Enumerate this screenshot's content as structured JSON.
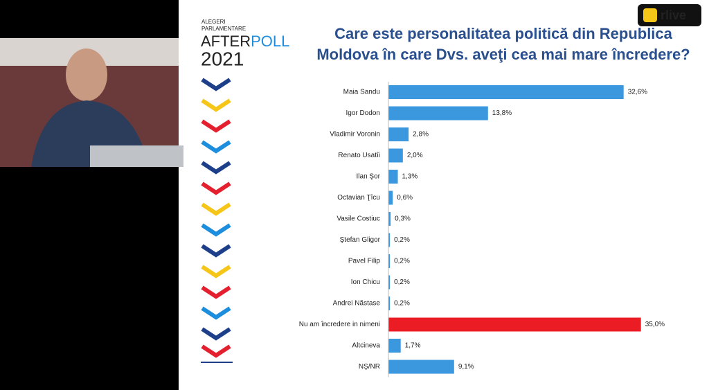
{
  "logo": {
    "line1": "ALEGERI",
    "line2": "PARLAMENTARE",
    "after": "AFTER",
    "poll": "POLL",
    "year": "2021"
  },
  "watermark": "rlive",
  "chart_data": {
    "type": "hbar",
    "title": "Care este personalitatea politică din Republica Moldova în care Dvs. aveţi cea mai mare încredere?",
    "categories": [
      "Maia Sandu",
      "Igor Dodon",
      "Vladimir Voronin",
      "Renato Usatîi",
      "Ilan Şor",
      "Octavian Ţîcu",
      "Vasile Costiuc",
      "Ştefan Gligor",
      "Pavel Filip",
      "Ion Chicu",
      "Andrei Năstase",
      "Nu am încredere in nimeni",
      "Altcineva",
      "NŞ/NR"
    ],
    "values": [
      32.6,
      13.8,
      2.8,
      2.0,
      1.3,
      0.6,
      0.3,
      0.2,
      0.2,
      0.2,
      0.2,
      35.0,
      1.7,
      9.1
    ],
    "value_labels": [
      "32,6%",
      "13,8%",
      "2,8%",
      "2,0%",
      "1,3%",
      "0,6%",
      "0,3%",
      "0,2%",
      "0,2%",
      "0,2%",
      "0,2%",
      "35,0%",
      "1,7%",
      "9,1%"
    ],
    "colors": [
      "#3b97de",
      "#3b97de",
      "#3b97de",
      "#3b97de",
      "#3b97de",
      "#3b97de",
      "#3b97de",
      "#3b97de",
      "#3b97de",
      "#3b97de",
      "#3b97de",
      "#ec1c24",
      "#3b97de",
      "#3b97de"
    ]
  }
}
